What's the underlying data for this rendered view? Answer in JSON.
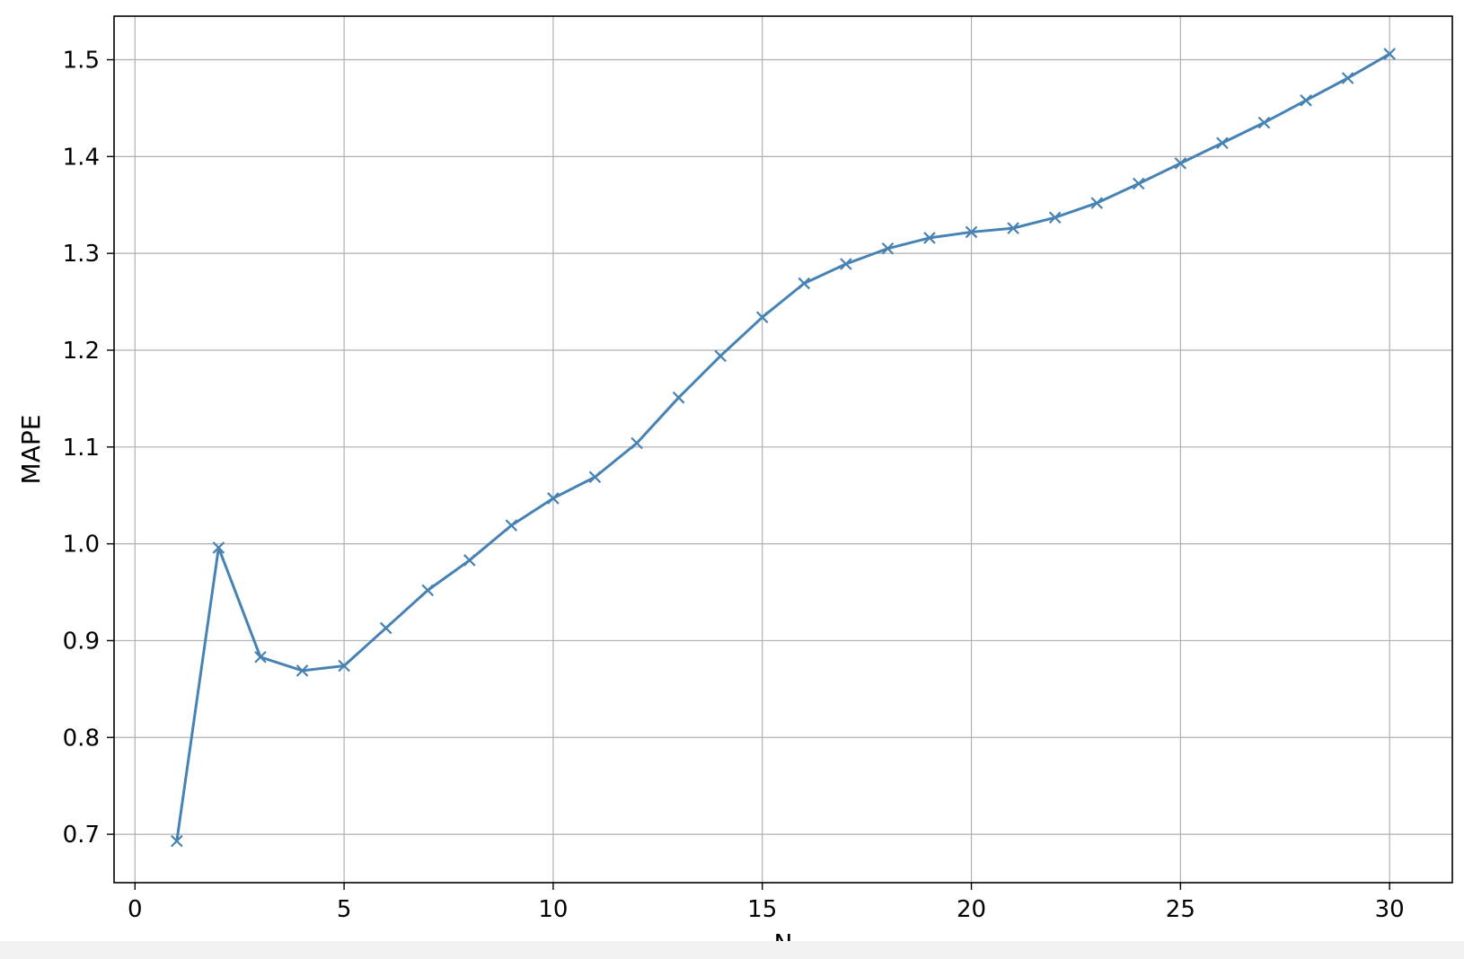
{
  "chart_data": {
    "type": "line",
    "title": "",
    "xlabel": "N",
    "ylabel": "MAPE",
    "xlim": [
      -0.5,
      31.5
    ],
    "ylim": [
      0.65,
      1.545
    ],
    "x_ticks": [
      0,
      5,
      10,
      15,
      20,
      25,
      30
    ],
    "x_tick_labels": [
      "0",
      "5",
      "10",
      "15",
      "20",
      "25",
      "30"
    ],
    "y_ticks": [
      0.7,
      0.8,
      0.9,
      1.0,
      1.1,
      1.2,
      1.3,
      1.4,
      1.5
    ],
    "y_tick_labels": [
      "0.7",
      "0.8",
      "0.9",
      "1.0",
      "1.1",
      "1.2",
      "1.3",
      "1.4",
      "1.5"
    ],
    "grid": true,
    "legend": "none",
    "series": [
      {
        "color": "#4682b4",
        "marker": "x",
        "x": [
          1,
          2,
          3,
          4,
          5,
          6,
          7,
          8,
          9,
          10,
          11,
          12,
          13,
          14,
          15,
          16,
          17,
          18,
          19,
          20,
          21,
          22,
          23,
          24,
          25,
          26,
          27,
          28,
          29,
          30
        ],
        "y": [
          0.693,
          0.996,
          0.883,
          0.869,
          0.874,
          0.913,
          0.952,
          0.983,
          1.019,
          1.047,
          1.069,
          1.104,
          1.151,
          1.194,
          1.234,
          1.269,
          1.289,
          1.305,
          1.316,
          1.322,
          1.326,
          1.337,
          1.352,
          1.372,
          1.393,
          1.414,
          1.435,
          1.458,
          1.481,
          1.506
        ]
      }
    ]
  }
}
